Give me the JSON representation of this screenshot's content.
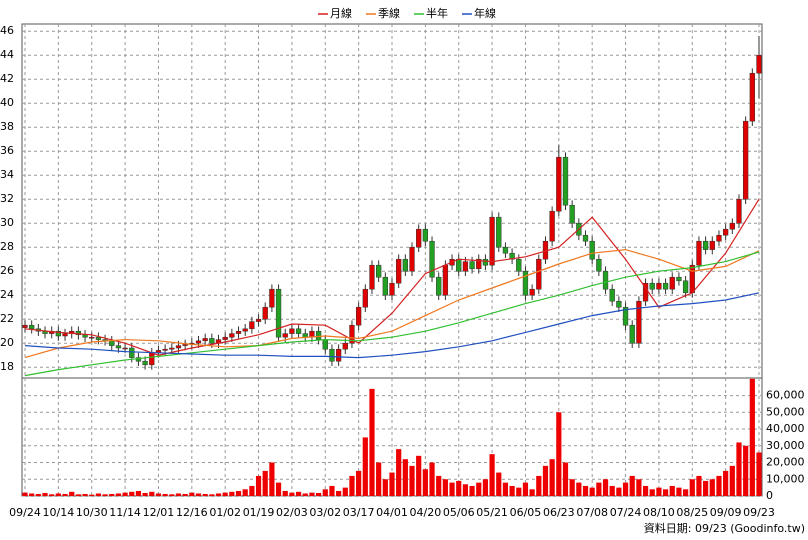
{
  "chart_data": {
    "type": "candlestick",
    "categories": [
      "09/24",
      null,
      null,
      null,
      null,
      "10/14",
      null,
      null,
      null,
      null,
      "10/30",
      null,
      null,
      null,
      null,
      "11/14",
      null,
      null,
      null,
      null,
      "12/01",
      null,
      null,
      null,
      null,
      "12/16",
      null,
      null,
      null,
      null,
      "01/02",
      null,
      null,
      null,
      null,
      "01/19",
      null,
      null,
      null,
      null,
      "02/03",
      null,
      null,
      null,
      null,
      "03/02",
      null,
      null,
      null,
      null,
      "03/17",
      null,
      null,
      null,
      null,
      "04/01",
      null,
      null,
      null,
      null,
      "04/20",
      null,
      null,
      null,
      null,
      "05/06",
      null,
      null,
      null,
      null,
      "05/21",
      null,
      null,
      null,
      null,
      "06/05",
      null,
      null,
      null,
      null,
      "06/23",
      null,
      null,
      null,
      null,
      "07/08",
      null,
      null,
      null,
      null,
      "07/24",
      null,
      null,
      null,
      null,
      "08/10",
      null,
      null,
      null,
      null,
      "08/25",
      null,
      null,
      null,
      null,
      "09/09",
      null,
      null,
      null,
      null,
      "09/23"
    ],
    "open": [
      21.3,
      21.5,
      21.2,
      21.0,
      20.8,
      21.0,
      20.6,
      20.8,
      21.0,
      20.7,
      20.5,
      20.5,
      20.3,
      20.2,
      19.8,
      19.6,
      19.6,
      18.8,
      18.5,
      18.2,
      19.2,
      19.4,
      19.5,
      19.6,
      19.8,
      19.9,
      20.0,
      20.2,
      20.4,
      20.0,
      20.3,
      20.5,
      20.8,
      21.0,
      21.2,
      21.8,
      22.0,
      23.0,
      24.5,
      20.5,
      20.8,
      21.2,
      20.8,
      20.5,
      21.0,
      20.3,
      19.5,
      18.5,
      19.5,
      20.0,
      21.5,
      23.0,
      24.5,
      26.5,
      25.5,
      24.0,
      25.0,
      27.0,
      26.0,
      28.0,
      29.5,
      28.5,
      25.5,
      24.0,
      26.5,
      27.0,
      26.0,
      26.8,
      26.2,
      27.0,
      26.5,
      30.5,
      28.0,
      27.5,
      27.0,
      26.0,
      24.0,
      24.5,
      27.0,
      28.5,
      31.0,
      35.5,
      31.5,
      30.0,
      29.0,
      28.5,
      27.0,
      26.0,
      24.5,
      23.5,
      23.0,
      21.5,
      20.0,
      23.5,
      25.0,
      24.5,
      25.0,
      24.5,
      25.5,
      25.2,
      24.2,
      26.5,
      28.5,
      27.8,
      28.5,
      29.0,
      29.5,
      30.0,
      32.0,
      38.5,
      42.5
    ],
    "high": [
      21.9,
      21.9,
      21.6,
      21.4,
      21.4,
      21.4,
      21.2,
      21.4,
      21.4,
      21.1,
      20.9,
      20.9,
      20.7,
      20.6,
      20.2,
      20.0,
      20.0,
      19.2,
      18.9,
      19.6,
      19.8,
      19.9,
      20.0,
      20.2,
      20.3,
      20.4,
      20.6,
      20.8,
      20.8,
      20.7,
      20.9,
      21.2,
      21.4,
      21.6,
      22.2,
      22.4,
      23.4,
      24.9,
      24.9,
      21.2,
      21.6,
      21.6,
      21.2,
      21.4,
      21.4,
      20.7,
      19.9,
      19.9,
      20.4,
      21.9,
      23.4,
      24.9,
      26.9,
      26.9,
      25.9,
      25.4,
      27.4,
      27.4,
      28.4,
      29.9,
      29.9,
      28.9,
      25.9,
      26.9,
      27.4,
      27.4,
      27.2,
      27.2,
      27.4,
      27.4,
      30.9,
      30.9,
      28.4,
      27.9,
      27.4,
      26.4,
      24.9,
      27.4,
      28.9,
      31.4,
      36.5,
      35.9,
      31.9,
      30.4,
      29.4,
      28.9,
      27.4,
      26.4,
      24.9,
      23.9,
      23.4,
      21.9,
      23.9,
      25.4,
      25.4,
      25.4,
      25.4,
      25.9,
      25.9,
      25.6,
      26.9,
      28.9,
      28.9,
      28.9,
      29.4,
      29.9,
      30.4,
      32.4,
      38.9,
      42.9,
      45.6
    ],
    "low": [
      20.9,
      20.8,
      20.6,
      20.4,
      20.4,
      20.2,
      20.2,
      20.4,
      20.3,
      20.1,
      20.1,
      19.9,
      19.8,
      19.4,
      19.2,
      19.2,
      18.4,
      18.1,
      17.8,
      17.8,
      18.8,
      19.0,
      19.1,
      19.2,
      19.4,
      19.5,
      19.6,
      19.8,
      19.6,
      19.6,
      19.9,
      20.1,
      20.4,
      20.6,
      20.8,
      21.4,
      21.6,
      22.6,
      20.1,
      20.1,
      20.4,
      20.4,
      20.1,
      20.1,
      19.9,
      19.1,
      18.1,
      18.1,
      19.1,
      19.6,
      21.1,
      22.6,
      24.1,
      25.1,
      23.6,
      23.6,
      24.6,
      25.6,
      25.6,
      27.6,
      28.1,
      25.1,
      23.6,
      23.6,
      26.1,
      25.6,
      25.6,
      25.8,
      25.8,
      26.1,
      26.1,
      27.6,
      27.1,
      26.6,
      25.6,
      23.6,
      23.6,
      24.1,
      26.6,
      28.1,
      30.6,
      31.1,
      29.6,
      28.6,
      28.1,
      26.6,
      25.6,
      24.1,
      23.1,
      22.6,
      21.1,
      19.6,
      19.6,
      23.1,
      24.1,
      24.1,
      24.1,
      24.1,
      24.8,
      23.8,
      23.8,
      26.1,
      27.4,
      27.4,
      28.1,
      28.6,
      29.1,
      29.6,
      31.6,
      38.1,
      40.4
    ],
    "close": [
      21.5,
      21.2,
      21.0,
      20.8,
      21.0,
      20.6,
      20.8,
      21.0,
      20.7,
      20.5,
      20.5,
      20.3,
      20.2,
      19.8,
      19.6,
      19.6,
      18.8,
      18.5,
      18.2,
      19.2,
      19.4,
      19.5,
      19.6,
      19.8,
      19.9,
      20.0,
      20.2,
      20.4,
      20.0,
      20.3,
      20.5,
      20.8,
      21.0,
      21.2,
      21.8,
      22.0,
      23.0,
      24.5,
      20.5,
      20.8,
      21.2,
      20.8,
      20.5,
      21.0,
      20.3,
      19.5,
      18.5,
      19.5,
      20.0,
      21.5,
      23.0,
      24.5,
      26.5,
      25.5,
      24.0,
      25.0,
      27.0,
      26.0,
      28.0,
      29.5,
      28.5,
      25.5,
      24.0,
      26.5,
      27.0,
      26.0,
      26.8,
      26.2,
      27.0,
      26.5,
      30.5,
      28.0,
      27.5,
      27.0,
      26.0,
      24.0,
      24.5,
      27.0,
      28.5,
      31.0,
      35.5,
      31.5,
      30.0,
      29.0,
      28.5,
      27.0,
      26.0,
      24.5,
      23.5,
      23.0,
      21.5,
      20.0,
      23.5,
      25.0,
      24.5,
      25.0,
      24.5,
      25.5,
      25.2,
      24.2,
      26.5,
      28.5,
      27.8,
      28.5,
      29.0,
      29.5,
      30.0,
      32.0,
      38.5,
      42.5,
      44.0
    ],
    "up_color": "#e00000",
    "down_color": "#22a022",
    "ylim": [
      17.1,
      46.6
    ],
    "yticks": [
      18,
      20,
      22,
      24,
      26,
      28,
      30,
      32,
      34,
      36,
      38,
      40,
      42,
      44,
      46
    ],
    "grid": true,
    "series": [
      {
        "name": "月線",
        "color": "#d42020",
        "x": [
          0,
          5,
          10,
          15,
          20,
          25,
          30,
          35,
          40,
          45,
          50,
          55,
          60,
          65,
          70,
          75,
          80,
          85,
          90,
          95,
          100,
          105,
          110
        ],
        "values": [
          21.2,
          20.9,
          20.7,
          20.0,
          19.0,
          19.6,
          20.1,
          20.7,
          21.6,
          21.5,
          20.0,
          22.5,
          25.8,
          27.0,
          26.8,
          27.2,
          28.0,
          30.5,
          27.0,
          23.0,
          24.2,
          27.5,
          32.0
        ]
      },
      {
        "name": "季線",
        "color": "#f07820",
        "x": [
          0,
          5,
          10,
          15,
          20,
          25,
          30,
          35,
          40,
          45,
          50,
          55,
          60,
          65,
          70,
          75,
          80,
          85,
          90,
          95,
          100,
          105,
          110
        ],
        "values": [
          18.8,
          19.6,
          20.1,
          20.3,
          20.2,
          19.9,
          19.7,
          19.8,
          20.4,
          20.6,
          20.4,
          21.0,
          22.3,
          23.6,
          24.6,
          25.6,
          26.6,
          27.5,
          27.8,
          27.0,
          26.0,
          26.4,
          27.7
        ]
      },
      {
        "name": "半年",
        "color": "#30c030",
        "x": [
          0,
          5,
          10,
          15,
          20,
          25,
          30,
          35,
          40,
          45,
          50,
          55,
          60,
          65,
          70,
          75,
          80,
          85,
          90,
          95,
          100,
          105,
          110
        ],
        "values": [
          17.3,
          17.8,
          18.2,
          18.6,
          18.9,
          19.2,
          19.5,
          19.8,
          20.1,
          20.3,
          20.2,
          20.5,
          21.0,
          21.7,
          22.5,
          23.3,
          24.0,
          24.8,
          25.5,
          26.0,
          26.3,
          26.8,
          27.6
        ]
      },
      {
        "name": "年線",
        "color": "#2050c0",
        "x": [
          0,
          5,
          10,
          15,
          20,
          25,
          30,
          35,
          40,
          45,
          50,
          55,
          60,
          65,
          70,
          75,
          80,
          85,
          90,
          95,
          100,
          105,
          110
        ],
        "values": [
          19.8,
          19.6,
          19.5,
          19.3,
          19.2,
          19.1,
          19.0,
          19.0,
          18.9,
          18.9,
          18.8,
          19.0,
          19.3,
          19.7,
          20.2,
          20.9,
          21.6,
          22.3,
          22.8,
          23.1,
          23.3,
          23.6,
          24.2
        ]
      }
    ],
    "volume": {
      "type": "bar",
      "color": "#ee0000",
      "values": [
        2000,
        1500,
        1200,
        1800,
        1000,
        1500,
        1200,
        2500,
        1000,
        1200,
        800,
        1500,
        1000,
        1200,
        1500,
        2000,
        2500,
        3000,
        1800,
        2500,
        1500,
        1200,
        1000,
        1500,
        1200,
        2000,
        1500,
        1200,
        1000,
        1500,
        2000,
        2500,
        3000,
        4000,
        6000,
        12000,
        15000,
        20000,
        8000,
        3000,
        2000,
        2500,
        1500,
        2000,
        1800,
        4000,
        6000,
        3000,
        5000,
        12000,
        15000,
        35000,
        64000,
        20000,
        10000,
        14000,
        28000,
        22000,
        18000,
        24000,
        16000,
        20000,
        12000,
        10000,
        8000,
        9000,
        7000,
        6000,
        8000,
        10000,
        25000,
        14000,
        8000,
        6000,
        5000,
        8000,
        4000,
        12000,
        18000,
        22000,
        50000,
        20000,
        10000,
        8000,
        6000,
        5000,
        8000,
        10000,
        6000,
        5000,
        8000,
        12000,
        10000,
        6000,
        4000,
        5000,
        4000,
        6000,
        5000,
        4000,
        10000,
        12000,
        9000,
        10000,
        12000,
        15000,
        18000,
        32000,
        30000,
        70000,
        26000
      ],
      "y2lim": [
        0,
        70500
      ],
      "y2ticks": [
        0,
        {
          "value": 10000,
          "label": "10,000"
        },
        {
          "value": 20000,
          "label": "20,000"
        },
        {
          "value": 30000,
          "label": "30,000"
        },
        {
          "value": 40000,
          "label": "40,000"
        },
        {
          "value": 50000,
          "label": "50,000"
        },
        {
          "value": 60000,
          "label": "60,000"
        }
      ]
    },
    "source": "資料日期: 09/23 (Goodinfo.tw)"
  }
}
